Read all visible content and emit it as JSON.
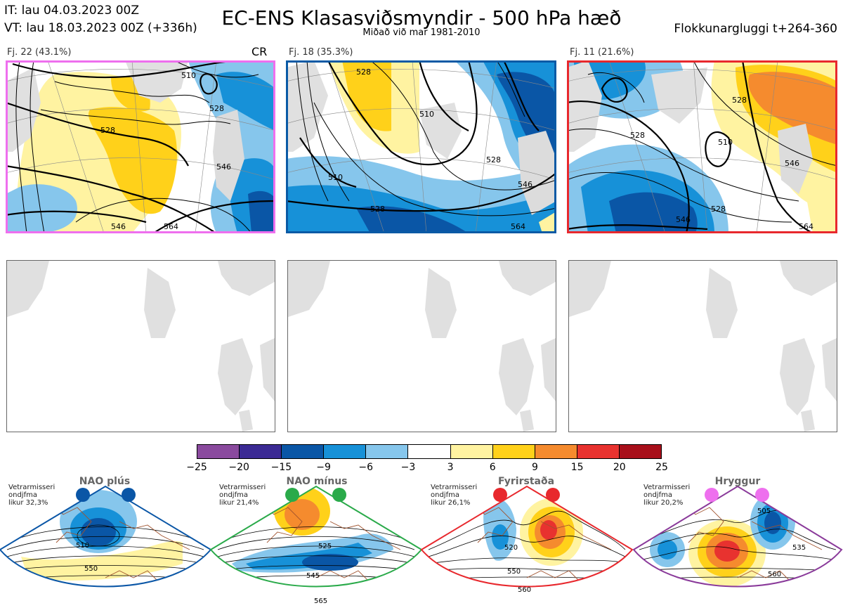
{
  "header": {
    "it_line": "IT: lau 04.03.2023 00Z",
    "vt_line": "VT: lau 18.03.2023 00Z  (+336h)",
    "title": "EC-ENS Klasasviðsmyndir - 500 hPa hæð",
    "subtitle": "Miðað við mar 1981-2010",
    "window": "Flokkunargluggi t+264-360"
  },
  "clusters": [
    {
      "label": "Fj. 22 (43.1%)",
      "tag": "CR",
      "border_color": "#ee6fee",
      "contours": [
        "510",
        "528",
        "528",
        "546",
        "564",
        "546"
      ]
    },
    {
      "label": "Fj. 18 (35.3%)",
      "tag": "",
      "border_color": "#0a5aa5",
      "contours": [
        "528",
        "510",
        "510",
        "528",
        "546",
        "564",
        "528"
      ]
    },
    {
      "label": "Fj. 11 (21.6%)",
      "tag": "",
      "border_color": "#e8282d",
      "contours": [
        "528",
        "510",
        "528",
        "528",
        "546",
        "564",
        "546"
      ]
    }
  ],
  "colorbar": {
    "ticks": [
      "−25",
      "−20",
      "−15",
      "−9",
      "−6",
      "−3",
      "3",
      "6",
      "9",
      "15",
      "20",
      "25"
    ],
    "colors": [
      "#8a4a9e",
      "#3b2a94",
      "#0a56a6",
      "#1791d8",
      "#86c6ec",
      "#ffffff",
      "#fff3a1",
      "#ffd11a",
      "#f58b2e",
      "#e8322f",
      "#a80f1a"
    ]
  },
  "regimes": [
    {
      "name": "NAO plús",
      "note": "Vetrarmisseri\nondjfma\nlikur 32,3%",
      "color": "#0a56a6",
      "contours": [
        "510",
        "550"
      ]
    },
    {
      "name": "NAO mínus",
      "note": "Vetrarmisseri\nondjfma\nlikur 21,4%",
      "color": "#2aaa4a",
      "contours": [
        "525",
        "545",
        "565"
      ]
    },
    {
      "name": "Fyrirstaða",
      "note": "Vetrarmisseri\nondjfma\nlikur 26,1%",
      "color": "#e8282d",
      "contours": [
        "520",
        "550",
        "560"
      ]
    },
    {
      "name": "Hryggur",
      "note": "Vetrarmisseri\nondjfma\nlikur 20,2%",
      "color": "#8a3a9a",
      "contours": [
        "505",
        "535",
        "560"
      ]
    }
  ]
}
